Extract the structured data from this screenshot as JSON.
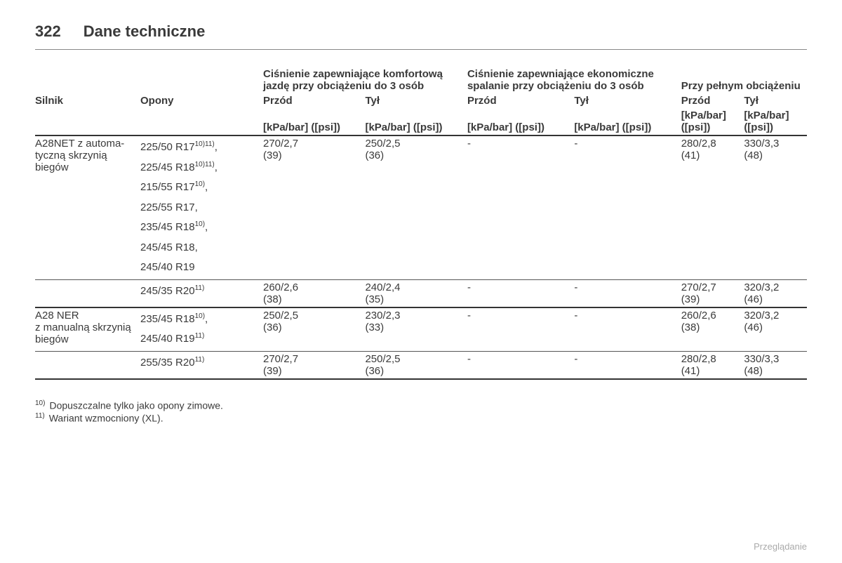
{
  "page": {
    "number": "322",
    "title": "Dane techniczne"
  },
  "columns": {
    "engine_label": "Silnik",
    "tyres_label": "Opony",
    "group_comfort": "Ciśnienie zapewniające komfortową jazdę przy obciążeniu do 3 osób",
    "group_eco": "Ciśnienie zapewniające ekonomiczne spalanie przy obciążeniu do 3 osób",
    "group_full": "Przy pełnym obciążeniu",
    "front": "Przód",
    "rear": "Tył",
    "units": "[kPa/bar] ([psi])"
  },
  "rows": [
    {
      "engine": "A28NET z automa­tyczną skrzynią biegów",
      "tyre_lines": [
        {
          "text": "225/50 R17",
          "sup": "10)11)",
          "trail": ","
        },
        {
          "text": "225/45 R18",
          "sup": "10)11)",
          "trail": ","
        },
        {
          "text": "215/55 R17",
          "sup": "10)",
          "trail": ","
        },
        {
          "text": "225/55 R17",
          "sup": "",
          "trail": ","
        },
        {
          "text": "235/45 R18",
          "sup": "10)",
          "trail": ","
        },
        {
          "text": "245/45 R18",
          "sup": "",
          "trail": ","
        },
        {
          "text": "245/40 R19",
          "sup": "",
          "trail": ""
        }
      ],
      "values": [
        "270/2,7 (39)",
        "250/2,5 (36)",
        "-",
        "-",
        "280/2,8 (41)",
        "330/3,3 (48)"
      ],
      "border_after": "thin"
    },
    {
      "engine": "",
      "tyre_lines": [
        {
          "text": "245/35 R20",
          "sup": "11)",
          "trail": ""
        }
      ],
      "values": [
        "260/2,6 (38)",
        "240/2,4 (35)",
        "-",
        "-",
        "270/2,7 (39)",
        "320/3,2 (46)"
      ],
      "border_after": "thick"
    },
    {
      "engine": "A28 NER z manualną skrzynią biegów",
      "tyre_lines": [
        {
          "text": "235/45 R18",
          "sup": "10)",
          "trail": ","
        },
        {
          "text": "245/40 R19",
          "sup": "11)",
          "trail": ""
        }
      ],
      "values": [
        "250/2,5 (36)",
        "230/2,3 (33)",
        "-",
        "-",
        "260/2,6 (38)",
        "320/3,2 (46)"
      ],
      "border_after": "thin"
    },
    {
      "engine": "",
      "tyre_lines": [
        {
          "text": "255/35 R20",
          "sup": "11)",
          "trail": ""
        }
      ],
      "values": [
        "270/2,7 (39)",
        "250/2,5 (36)",
        "-",
        "-",
        "280/2,8 (41)",
        "330/3,3 (48)"
      ],
      "border_after": "thick"
    }
  ],
  "footnotes": [
    {
      "mark": "10)",
      "text": "Dopuszczalne tylko jako opony zimowe."
    },
    {
      "mark": "11)",
      "text": "Wariant wzmocniony (XL)."
    }
  ],
  "footer_label": "Przeglądanie"
}
